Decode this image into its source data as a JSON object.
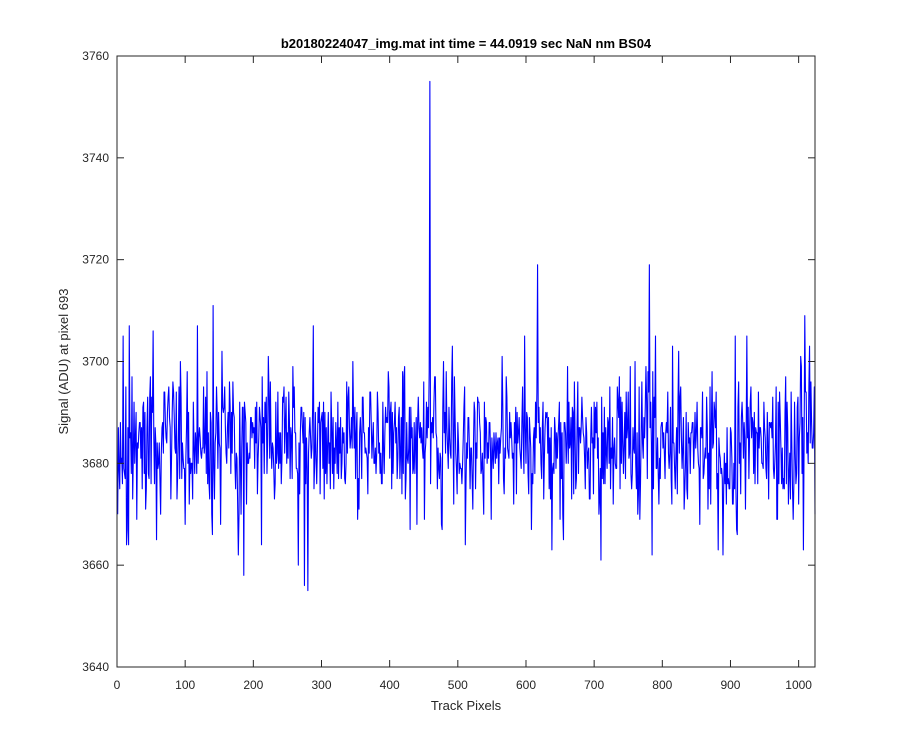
{
  "chart_data": {
    "type": "line",
    "title": "b20180224047_img.mat int time = 44.0919 sec  NaN nm BS04",
    "xlabel": "Track Pixels",
    "ylabel": "Signal (ADU) at pixel 693",
    "xlim": [
      0,
      1024
    ],
    "ylim": [
      3640,
      3760
    ],
    "xticks": [
      0,
      100,
      200,
      300,
      400,
      500,
      600,
      700,
      800,
      900,
      1000
    ],
    "yticks": [
      3640,
      3660,
      3680,
      3700,
      3720,
      3740,
      3760
    ],
    "grid": false,
    "legend": "none",
    "series": [
      {
        "color": "#0000ff",
        "x_start": 1,
        "x_step": 1,
        "noise_model": {
          "mean": 3684,
          "std": 7.5,
          "count": 1024,
          "seed": 20180224
        },
        "key_points": [
          {
            "x": 1,
            "y": 3670
          },
          {
            "x": 17,
            "y": 3664
          },
          {
            "x": 18,
            "y": 3707
          },
          {
            "x": 118,
            "y": 3707
          },
          {
            "x": 178,
            "y": 3662
          },
          {
            "x": 186,
            "y": 3658
          },
          {
            "x": 266,
            "y": 3660
          },
          {
            "x": 275,
            "y": 3656
          },
          {
            "x": 280,
            "y": 3655
          },
          {
            "x": 288,
            "y": 3707
          },
          {
            "x": 459,
            "y": 3755
          },
          {
            "x": 460,
            "y": 3676
          },
          {
            "x": 617,
            "y": 3719
          },
          {
            "x": 638,
            "y": 3663
          },
          {
            "x": 710,
            "y": 3661
          },
          {
            "x": 781,
            "y": 3719
          },
          {
            "x": 785,
            "y": 3662
          },
          {
            "x": 889,
            "y": 3662
          },
          {
            "x": 1007,
            "y": 3663
          },
          {
            "x": 1016,
            "y": 3703
          },
          {
            "x": 1024,
            "y": 3670
          }
        ]
      }
    ]
  }
}
